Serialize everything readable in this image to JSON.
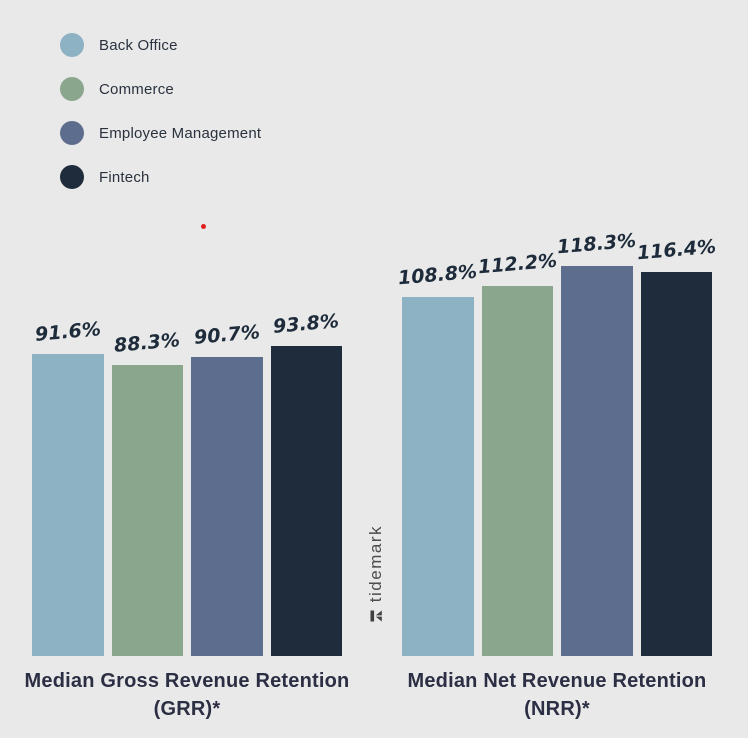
{
  "colors": {
    "background": "#e9e9e9",
    "value_label": "#1d2b3a",
    "group_label": "#2c2f44",
    "legend_label": "#2a323e",
    "watermark": "#4c4c4c",
    "red_dot": "#e0201c"
  },
  "watermark": {
    "text": "tidemark"
  },
  "chart_data": {
    "type": "bar",
    "legend_position": "top-left",
    "grid": false,
    "unit": "%",
    "ylim": [
      0,
      125
    ],
    "series": [
      {
        "name": "Back Office",
        "color": "#8db2c3"
      },
      {
        "name": "Commerce",
        "color": "#8aa78d"
      },
      {
        "name": "Employee Management",
        "color": "#5c6d8d"
      },
      {
        "name": "Fintech",
        "color": "#1e2c3b"
      }
    ],
    "groups": [
      {
        "key": "grr",
        "label": "Median Gross Revenue Retention",
        "sublabel": "(GRR)*",
        "values": [
          91.6,
          88.3,
          90.7,
          93.8
        ],
        "display_values": [
          "91.6%",
          "88.3%",
          "90.7%",
          "93.8%"
        ]
      },
      {
        "key": "nrr",
        "label": "Median Net Revenue Retention",
        "sublabel": "(NRR)*",
        "values": [
          108.8,
          112.2,
          118.3,
          116.4
        ],
        "display_values": [
          "108.8%",
          "112.2%",
          "118.3%",
          "116.4%"
        ]
      }
    ]
  }
}
